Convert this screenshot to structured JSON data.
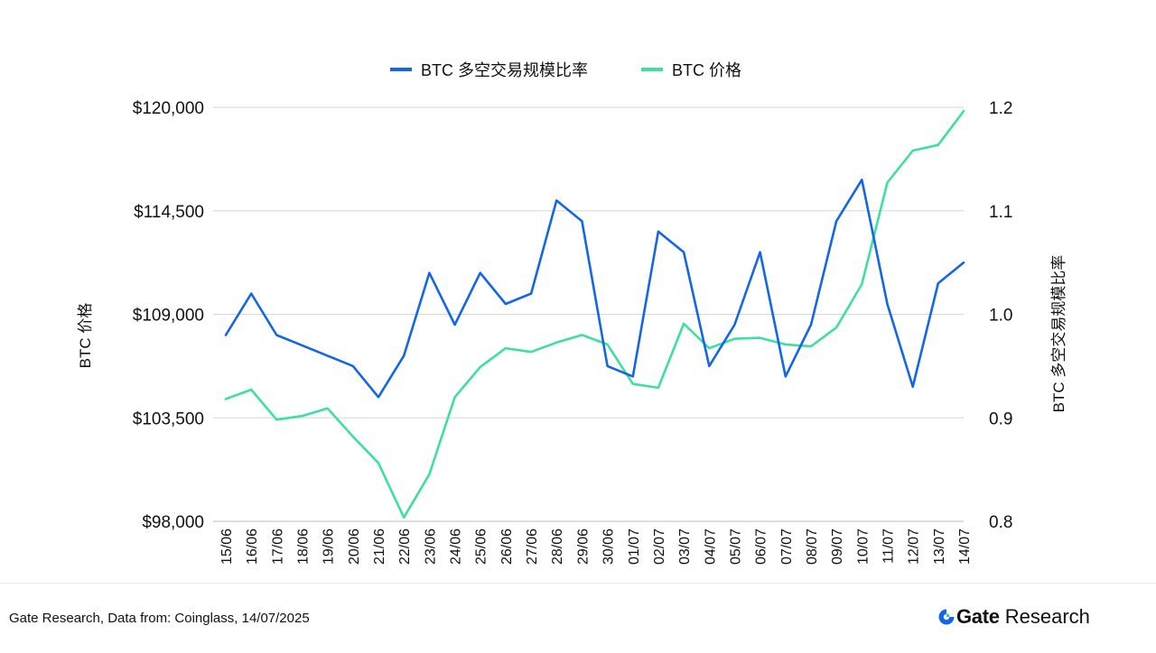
{
  "chart_data": {
    "type": "line",
    "categories": [
      "15/06",
      "16/06",
      "17/06",
      "18/06",
      "19/06",
      "20/06",
      "21/06",
      "22/06",
      "23/06",
      "24/06",
      "25/06",
      "26/06",
      "27/06",
      "28/06",
      "29/06",
      "30/06",
      "01/07",
      "02/07",
      "03/07",
      "04/07",
      "05/07",
      "06/07",
      "07/07",
      "08/07",
      "09/07",
      "10/07",
      "11/07",
      "12/07",
      "13/07",
      "14/07"
    ],
    "legend_position": "top-center",
    "grid": true,
    "y_left": {
      "label": "BTC 价格",
      "ylim": [
        98000,
        120000
      ],
      "ticks": [
        98000,
        103500,
        109000,
        114500,
        120000
      ],
      "tick_labels": [
        "$98,000",
        "$103,500",
        "$109,000",
        "$114,500",
        "$120,000"
      ]
    },
    "y_right": {
      "label": "BTC 多空交易规模比率",
      "ylim": [
        0.8,
        1.2
      ],
      "ticks": [
        0.8,
        0.9,
        1.0,
        1.1,
        1.2
      ],
      "tick_labels": [
        "0.8",
        "0.9",
        "1.0",
        "1.1",
        "1.2"
      ]
    },
    "series": [
      {
        "name": "BTC 多空交易规模比率",
        "axis": "right",
        "color": "#1366e8",
        "values": [
          0.98,
          1.02,
          0.98,
          0.97,
          0.96,
          0.95,
          0.92,
          0.96,
          1.04,
          0.99,
          1.04,
          1.01,
          1.02,
          1.11,
          1.09,
          0.95,
          0.94,
          1.08,
          1.06,
          0.95,
          0.99,
          1.06,
          0.94,
          0.99,
          1.09,
          1.13,
          1.01,
          0.93,
          1.03,
          1.05
        ]
      },
      {
        "name": "BTC 价格",
        "axis": "left",
        "color": "#3de0a0",
        "values": [
          104500,
          105000,
          103400,
          103600,
          104000,
          102500,
          101100,
          98200,
          100500,
          104600,
          106200,
          107200,
          107000,
          107500,
          107900,
          107400,
          105300,
          105100,
          108500,
          107200,
          107700,
          107750,
          107400,
          107300,
          108300,
          110600,
          116000,
          117700,
          118000,
          119800
        ]
      }
    ]
  },
  "footer": {
    "source": "Gate Research, Data from: Coinglass, 14/07/2025",
    "brand_name": "Gate",
    "brand_sub": "Research"
  }
}
